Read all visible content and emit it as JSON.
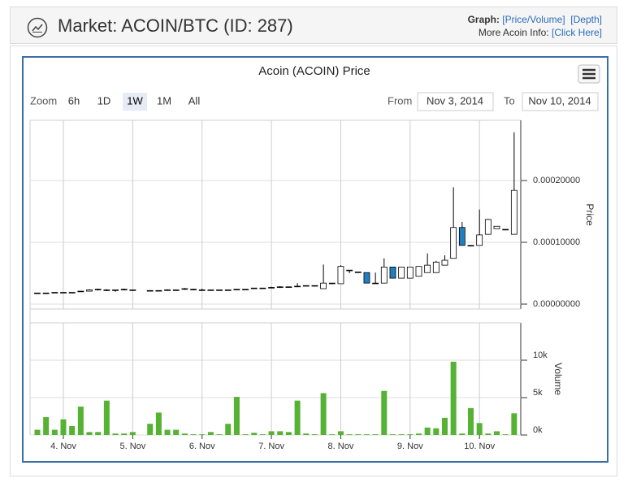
{
  "header": {
    "title": "Market: ACOIN/BTC (ID: 287)",
    "graph_label": "Graph:",
    "graph_links": [
      "[Price/Volume]",
      "[Depth]"
    ],
    "info_label": "More Acoin Info:",
    "info_link": "[Click Here]"
  },
  "controls": {
    "zoom_label": "Zoom",
    "zoom_options": [
      "6h",
      "1D",
      "1W",
      "1M",
      "All"
    ],
    "selected": "1W",
    "from_label": "From",
    "from": "Nov 3, 2014",
    "to_label": "To",
    "to": "Nov 10, 2014"
  },
  "chart_data": {
    "type": "candlestick",
    "title": "Acoin (ACOIN) Price",
    "categories": [
      null,
      null,
      null,
      "4. Nov",
      null,
      null,
      null,
      null,
      null,
      null,
      null,
      "5. Nov",
      null,
      null,
      null,
      null,
      null,
      null,
      null,
      "6. Nov",
      null,
      null,
      null,
      null,
      null,
      null,
      null,
      "7. Nov",
      null,
      null,
      null,
      null,
      null,
      null,
      null,
      "8. Nov",
      null,
      null,
      null,
      null,
      null,
      null,
      null,
      "9. Nov",
      null,
      null,
      null,
      null,
      null,
      null,
      null,
      "10. Nov",
      null,
      null,
      null,
      null
    ],
    "open": [
      1.8e-05,
      1.8e-05,
      1.8e-05,
      1.9e-05,
      1.9e-05,
      2e-05,
      2.1e-05,
      2.3e-05,
      2.2e-05,
      2.2e-05,
      2.3e-05,
      2.3e-05,
      null,
      2.2e-05,
      2.2e-05,
      2.2e-05,
      2.3e-05,
      2.4e-05,
      2.4e-05,
      2.3e-05,
      2.3e-05,
      2.3e-05,
      2.3e-05,
      2.4e-05,
      2.4e-05,
      2.5e-05,
      2.6e-05,
      2.6e-05,
      2.7e-05,
      2.8e-05,
      2.8e-05,
      2.9e-05,
      3e-05,
      2.5e-05,
      3.4e-05,
      3.3e-05,
      5.5e-05,
      5.2e-05,
      5.1e-05,
      3.4e-05,
      3.4e-05,
      6e-05,
      4.2e-05,
      4.2e-05,
      4.5e-05,
      5.1e-05,
      5.1e-05,
      6.3e-05,
      7.4e-05,
      0.000124,
      9.5e-05,
      9.5e-05,
      0.000113,
      0.000122,
      0.000121,
      0.000113
    ],
    "high": [
      1.8e-05,
      1.8e-05,
      1.9e-05,
      1.9e-05,
      1.9e-05,
      2.1e-05,
      2.4e-05,
      2.5e-05,
      2.4e-05,
      2.3e-05,
      2.5e-05,
      2.3e-05,
      null,
      2.2e-05,
      2.2e-05,
      2.4e-05,
      2.3e-05,
      2.6e-05,
      2.5e-05,
      2.5e-05,
      2.3e-05,
      2.3e-05,
      2.3e-05,
      2.4e-05,
      2.4e-05,
      2.6e-05,
      2.6e-05,
      2.8e-05,
      2.9e-05,
      2.8e-05,
      3.4e-05,
      3e-05,
      3e-05,
      6.4e-05,
      3.4e-05,
      6.3e-05,
      5.5e-05,
      5.2e-05,
      5.1e-05,
      5.1e-05,
      7.4e-05,
      6e-05,
      6e-05,
      6e-05,
      6.1e-05,
      8.2e-05,
      7e-05,
      7.9e-05,
      0.000189,
      0.000133,
      9.5e-05,
      0.000153,
      0.000138,
      0.000126,
      0.000121,
      0.000278
    ],
    "low": [
      1.8e-05,
      1.8e-05,
      1.8e-05,
      1.9e-05,
      1.9e-05,
      2e-05,
      2.1e-05,
      2.2e-05,
      2.1e-05,
      2e-05,
      2.2e-05,
      2.3e-05,
      null,
      2.2e-05,
      2.2e-05,
      2.2e-05,
      2.3e-05,
      2.3e-05,
      2.3e-05,
      2.2e-05,
      2.3e-05,
      2.3e-05,
      2.3e-05,
      2.4e-05,
      2.4e-05,
      2.5e-05,
      2.6e-05,
      2.6e-05,
      2.6e-05,
      2.8e-05,
      2.8e-05,
      2.9e-05,
      3e-05,
      2.5e-05,
      3.4e-05,
      3.3e-05,
      5e-05,
      5.2e-05,
      3.4e-05,
      3.4e-05,
      3.4e-05,
      4.2e-05,
      4.2e-05,
      4.2e-05,
      4.5e-05,
      5.1e-05,
      5.1e-05,
      6.3e-05,
      7.4e-05,
      9.5e-05,
      9.5e-05,
      9.5e-05,
      0.000113,
      0.000122,
      0.000121,
      0.000113
    ],
    "close": [
      1.8e-05,
      1.8e-05,
      1.9e-05,
      1.9e-05,
      1.9e-05,
      2.1e-05,
      2.3e-05,
      2.4e-05,
      2.3e-05,
      2.3e-05,
      2.4e-05,
      2.3e-05,
      null,
      2.2e-05,
      2.2e-05,
      2.3e-05,
      2.3e-05,
      2.5e-05,
      2.4e-05,
      2.3e-05,
      2.3e-05,
      2.3e-05,
      2.3e-05,
      2.4e-05,
      2.4e-05,
      2.6e-05,
      2.6e-05,
      2.7e-05,
      2.8e-05,
      2.8e-05,
      2.9e-05,
      3e-05,
      3e-05,
      3.4e-05,
      3.4e-05,
      6.1e-05,
      5.5e-05,
      5.2e-05,
      3.4e-05,
      3.4e-05,
      6e-05,
      4.2e-05,
      6e-05,
      6e-05,
      6.1e-05,
      6.3e-05,
      6.8e-05,
      7.1e-05,
      0.000124,
      9.5e-05,
      9.5e-05,
      0.000112,
      0.000137,
      0.000126,
      0.000121,
      0.000184
    ],
    "volume": [
      700,
      2400,
      700,
      2100,
      1200,
      3800,
      400,
      400,
      4600,
      200,
      200,
      400,
      null,
      1500,
      3000,
      700,
      700,
      200,
      100,
      100,
      400,
      100,
      1500,
      5100,
      100,
      300,
      100,
      500,
      500,
      400,
      4600,
      200,
      100,
      5600,
      100,
      500,
      100,
      100,
      100,
      100,
      5900,
      100,
      100,
      100,
      200,
      1000,
      900,
      2300,
      9800,
      200,
      3600,
      1600,
      200,
      500,
      100,
      2900
    ],
    "up_color": "#ffffff",
    "down_color": "#1f7fc0",
    "volume_color": "#55b233",
    "ylabel": "Price",
    "ylim": [
      -7.9e-06,
      0.0002974
    ],
    "yticks": [
      {
        "value": 0,
        "label": "0.00000000"
      },
      {
        "value": 0.0001,
        "label": "0.00010000"
      },
      {
        "value": 0.0002,
        "label": "0.00020000"
      }
    ],
    "y2label": "Volume",
    "y2lim": [
      0,
      15000
    ],
    "y2ticks": [
      {
        "value": 0,
        "label": "0k"
      },
      {
        "value": 5000,
        "label": "5k"
      },
      {
        "value": 10000,
        "label": "10k"
      }
    ],
    "grid": true
  }
}
